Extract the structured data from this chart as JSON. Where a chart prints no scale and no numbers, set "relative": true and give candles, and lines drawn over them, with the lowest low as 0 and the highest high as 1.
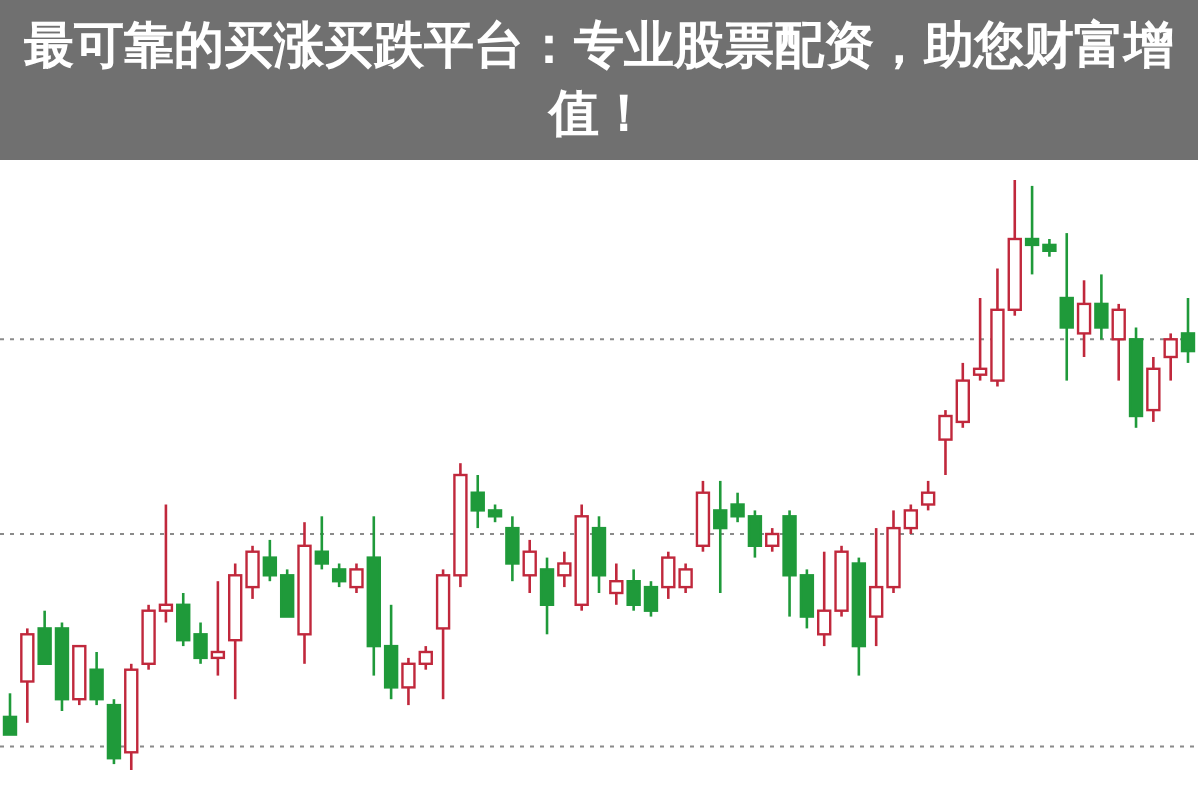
{
  "chart_data": {
    "type": "candlestick",
    "title": "最可靠的买涨买跌平台：专业股票配资，助您财富增值！",
    "relative": true,
    "categories": [
      null,
      null,
      null,
      null,
      null,
      null,
      null,
      null,
      null,
      null,
      null,
      null,
      null,
      null,
      null,
      null,
      null,
      null,
      null,
      null,
      null,
      null,
      null,
      null,
      null,
      null,
      null,
      null,
      null,
      null,
      null,
      null,
      null,
      null,
      null,
      null,
      null,
      null,
      null,
      null,
      null,
      null,
      null,
      null,
      null,
      null,
      null,
      null,
      null,
      null,
      null,
      null,
      null,
      null,
      null,
      null,
      null,
      null,
      null,
      null,
      null,
      null,
      null,
      null,
      null,
      null,
      null,
      null,
      null
    ],
    "ohlc": [
      [
        0.09,
        0.13,
        0.06,
        0.06
      ],
      [
        0.15,
        0.24,
        0.08,
        0.23
      ],
      [
        0.24,
        0.27,
        0.18,
        0.18
      ],
      [
        0.24,
        0.25,
        0.1,
        0.12
      ],
      [
        0.12,
        0.21,
        0.11,
        0.21
      ],
      [
        0.17,
        0.2,
        0.11,
        0.12
      ],
      [
        0.11,
        0.12,
        0.01,
        0.02
      ],
      [
        0.03,
        0.18,
        0,
        0.17
      ],
      [
        0.18,
        0.28,
        0.17,
        0.27
      ],
      [
        0.27,
        0.45,
        0.25,
        0.28
      ],
      [
        0.28,
        0.3,
        0.21,
        0.22
      ],
      [
        0.23,
        0.25,
        0.18,
        0.19
      ],
      [
        0.19,
        0.32,
        0.16,
        0.2
      ],
      [
        0.22,
        0.35,
        0.12,
        0.33
      ],
      [
        0.31,
        0.38,
        0.29,
        0.37
      ],
      [
        0.36,
        0.39,
        0.32,
        0.33
      ],
      [
        0.33,
        0.34,
        0.26,
        0.26
      ],
      [
        0.23,
        0.42,
        0.18,
        0.38
      ],
      [
        0.37,
        0.43,
        0.34,
        0.35
      ],
      [
        0.34,
        0.35,
        0.31,
        0.32
      ],
      [
        0.31,
        0.35,
        0.3,
        0.34
      ],
      [
        0.36,
        0.43,
        0.16,
        0.21
      ],
      [
        0.21,
        0.28,
        0.12,
        0.14
      ],
      [
        0.14,
        0.19,
        0.11,
        0.18
      ],
      [
        0.18,
        0.21,
        0.17,
        0.2
      ],
      [
        0.24,
        0.34,
        0.12,
        0.33
      ],
      [
        0.33,
        0.52,
        0.31,
        0.5
      ],
      [
        0.47,
        0.5,
        0.41,
        0.44
      ],
      [
        0.44,
        0.45,
        0.42,
        0.43
      ],
      [
        0.41,
        0.43,
        0.32,
        0.35
      ],
      [
        0.33,
        0.39,
        0.3,
        0.37
      ],
      [
        0.34,
        0.36,
        0.23,
        0.28
      ],
      [
        0.33,
        0.37,
        0.31,
        0.35
      ],
      [
        0.28,
        0.45,
        0.27,
        0.43
      ],
      [
        0.41,
        0.43,
        0.3,
        0.33
      ],
      [
        0.3,
        0.35,
        0.28,
        0.32
      ],
      [
        0.32,
        0.34,
        0.27,
        0.28
      ],
      [
        0.31,
        0.32,
        0.26,
        0.27
      ],
      [
        0.31,
        0.37,
        0.29,
        0.36
      ],
      [
        0.31,
        0.35,
        0.3,
        0.34
      ],
      [
        0.38,
        0.49,
        0.37,
        0.47
      ],
      [
        0.44,
        0.49,
        0.3,
        0.41
      ],
      [
        0.45,
        0.47,
        0.42,
        0.43
      ],
      [
        0.43,
        0.44,
        0.36,
        0.38
      ],
      [
        0.38,
        0.41,
        0.37,
        0.4
      ],
      [
        0.43,
        0.44,
        0.26,
        0.33
      ],
      [
        0.33,
        0.34,
        0.24,
        0.26
      ],
      [
        0.23,
        0.37,
        0.21,
        0.27
      ],
      [
        0.27,
        0.38,
        0.26,
        0.37
      ],
      [
        0.35,
        0.36,
        0.16,
        0.21
      ],
      [
        0.26,
        0.41,
        0.21,
        0.31
      ],
      [
        0.31,
        0.44,
        0.3,
        0.41
      ],
      [
        0.41,
        0.45,
        0.4,
        0.44
      ],
      [
        0.45,
        0.49,
        0.44,
        0.47
      ],
      [
        0.56,
        0.61,
        0.5,
        0.6
      ],
      [
        0.59,
        0.69,
        0.58,
        0.66
      ],
      [
        0.67,
        0.8,
        0.66,
        0.68
      ],
      [
        0.66,
        0.85,
        0.65,
        0.78
      ],
      [
        0.78,
        1,
        0.77,
        0.9
      ],
      [
        0.9,
        0.99,
        0.84,
        0.89
      ],
      [
        0.89,
        0.9,
        0.87,
        0.88
      ],
      [
        0.8,
        0.91,
        0.66,
        0.75
      ],
      [
        0.74,
        0.83,
        0.7,
        0.79
      ],
      [
        0.79,
        0.84,
        0.73,
        0.75
      ],
      [
        0.73,
        0.79,
        0.66,
        0.78
      ],
      [
        0.73,
        0.75,
        0.58,
        0.6
      ],
      [
        0.61,
        0.7,
        0.59,
        0.68
      ],
      [
        0.7,
        0.74,
        0.66,
        0.73
      ],
      [
        0.74,
        0.8,
        0.69,
        0.71
      ]
    ],
    "ref_lines": [
      {
        "axis": "y",
        "value": 0.73,
        "line_style": "dotted"
      },
      {
        "axis": "y",
        "value": 0.4,
        "line_style": "dotted"
      },
      {
        "axis": "y",
        "value": 0.04,
        "line_style": "dotted"
      }
    ]
  }
}
